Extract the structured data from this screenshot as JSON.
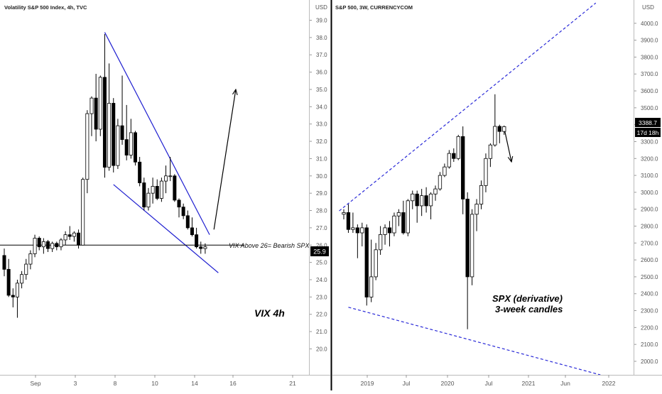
{
  "colors": {
    "up_candle": "#ffffff",
    "down_candle": "#000000",
    "candle_outline": "#000000",
    "trendline_left": "#1f1fd0",
    "trendline_right": "#2a2ad8",
    "axis_text": "#555555",
    "price_badge_bg": "#000000",
    "price_badge_text": "#ffffff"
  },
  "left_panel": {
    "header": "Volatility S&P 500 Index, 4h, TVC",
    "currency": "USD",
    "price_label": "25.9",
    "annotation_line": "VIX Above 26= Bearish SPX",
    "annotation_big": "VIX 4h"
  },
  "right_panel": {
    "header": "S&P 500, 3W, CURRENCYCOM",
    "currency": "USD",
    "price_label": "3388.7",
    "countdown": "17d 18h",
    "annotation_line1": "SPX (derivative)",
    "annotation_line2": "3-week candles"
  },
  "chart_data": [
    {
      "type": "candlestick",
      "title": "Volatility S&P 500 Index, 4h, TVC",
      "y_range": [
        18.5,
        39.8
      ],
      "y_ticks": [
        "20.0",
        "21.0",
        "22.0",
        "23.0",
        "24.0",
        "25.0",
        "26.0",
        "27.0",
        "28.0",
        "29.0",
        "30.0",
        "31.0",
        "32.0",
        "33.0",
        "34.0",
        "35.0",
        "36.0",
        "37.0",
        "38.0",
        "39.0"
      ],
      "x_ticks": [
        "Sep",
        "3",
        "8",
        "10",
        "14",
        "16",
        "21"
      ],
      "candles": [
        {
          "o": 25.4,
          "h": 25.8,
          "l": 24.2,
          "c": 24.6
        },
        {
          "o": 24.6,
          "h": 25.2,
          "l": 23.0,
          "c": 23.1
        },
        {
          "o": 23.1,
          "h": 23.5,
          "l": 22.4,
          "c": 23.0
        },
        {
          "o": 23.0,
          "h": 24.0,
          "l": 21.8,
          "c": 23.8
        },
        {
          "o": 23.8,
          "h": 24.5,
          "l": 23.5,
          "c": 24.3
        },
        {
          "o": 24.3,
          "h": 25.2,
          "l": 24.0,
          "c": 24.9
        },
        {
          "o": 24.9,
          "h": 25.7,
          "l": 24.6,
          "c": 25.5
        },
        {
          "o": 25.5,
          "h": 26.6,
          "l": 25.3,
          "c": 26.4
        },
        {
          "o": 26.4,
          "h": 26.5,
          "l": 25.7,
          "c": 25.9
        },
        {
          "o": 25.9,
          "h": 26.4,
          "l": 25.5,
          "c": 26.2
        },
        {
          "o": 26.2,
          "h": 26.3,
          "l": 25.6,
          "c": 25.8
        },
        {
          "o": 25.8,
          "h": 26.2,
          "l": 25.6,
          "c": 26.1
        },
        {
          "o": 26.1,
          "h": 26.2,
          "l": 25.7,
          "c": 25.9
        },
        {
          "o": 25.9,
          "h": 26.4,
          "l": 25.7,
          "c": 26.3
        },
        {
          "o": 26.3,
          "h": 26.8,
          "l": 26.0,
          "c": 26.6
        },
        {
          "o": 26.6,
          "h": 27.1,
          "l": 26.3,
          "c": 26.5
        },
        {
          "o": 26.5,
          "h": 26.8,
          "l": 26.2,
          "c": 26.7
        },
        {
          "o": 26.7,
          "h": 26.9,
          "l": 25.8,
          "c": 26.0
        },
        {
          "o": 26.0,
          "h": 29.9,
          "l": 26.0,
          "c": 29.8
        },
        {
          "o": 29.8,
          "h": 33.8,
          "l": 29.0,
          "c": 33.6
        },
        {
          "o": 33.6,
          "h": 34.6,
          "l": 32.3,
          "c": 34.5
        },
        {
          "o": 34.5,
          "h": 35.9,
          "l": 32.0,
          "c": 32.7
        },
        {
          "o": 32.7,
          "h": 35.8,
          "l": 32.3,
          "c": 35.7
        },
        {
          "o": 35.7,
          "h": 38.2,
          "l": 29.9,
          "c": 30.5
        },
        {
          "o": 30.5,
          "h": 36.5,
          "l": 30.3,
          "c": 34.2
        },
        {
          "o": 34.2,
          "h": 34.5,
          "l": 30.2,
          "c": 30.6
        },
        {
          "o": 30.6,
          "h": 33.3,
          "l": 30.4,
          "c": 32.9
        },
        {
          "o": 32.9,
          "h": 35.8,
          "l": 31.8,
          "c": 32.1
        },
        {
          "o": 32.1,
          "h": 34.1,
          "l": 30.9,
          "c": 31.2
        },
        {
          "o": 31.2,
          "h": 33.3,
          "l": 31.0,
          "c": 32.5
        },
        {
          "o": 32.5,
          "h": 32.6,
          "l": 30.6,
          "c": 30.8
        },
        {
          "o": 30.8,
          "h": 31.1,
          "l": 29.4,
          "c": 29.6
        },
        {
          "o": 29.6,
          "h": 29.9,
          "l": 28.0,
          "c": 28.2
        },
        {
          "o": 28.2,
          "h": 29.3,
          "l": 28.0,
          "c": 29.0
        },
        {
          "o": 29.0,
          "h": 29.9,
          "l": 28.4,
          "c": 29.4
        },
        {
          "o": 29.4,
          "h": 29.8,
          "l": 28.6,
          "c": 28.7
        },
        {
          "o": 28.7,
          "h": 29.9,
          "l": 28.5,
          "c": 29.7
        },
        {
          "o": 29.7,
          "h": 30.6,
          "l": 29.0,
          "c": 30.0
        },
        {
          "o": 30.0,
          "h": 31.1,
          "l": 29.7,
          "c": 30.0
        },
        {
          "o": 30.0,
          "h": 30.1,
          "l": 28.5,
          "c": 28.6
        },
        {
          "o": 28.6,
          "h": 28.7,
          "l": 27.6,
          "c": 28.2
        },
        {
          "o": 28.2,
          "h": 28.4,
          "l": 27.5,
          "c": 27.7
        },
        {
          "o": 27.7,
          "h": 28.0,
          "l": 26.9,
          "c": 27.0
        },
        {
          "o": 27.0,
          "h": 27.6,
          "l": 26.5,
          "c": 26.6
        },
        {
          "o": 26.6,
          "h": 27.0,
          "l": 25.8,
          "c": 25.9
        },
        {
          "o": 25.9,
          "h": 26.2,
          "l": 25.5,
          "c": 25.8
        },
        {
          "o": 25.8,
          "h": 26.1,
          "l": 25.5,
          "c": 25.9
        }
      ],
      "trendlines": [
        {
          "name": "wedge-upper",
          "points": [
            [
              23,
              38.3
            ],
            [
              47,
              26.6
            ]
          ]
        },
        {
          "name": "wedge-lower",
          "points": [
            [
              25,
              29.5
            ],
            [
              49,
              24.4
            ]
          ]
        },
        {
          "name": "level-26",
          "points": [
            [
              -2,
              26.0
            ],
            [
              55,
              26.0
            ]
          ]
        },
        {
          "name": "projection-arrow",
          "points": [
            [
              48,
              26.9
            ],
            [
              53,
              35.0
            ]
          ]
        }
      ]
    },
    {
      "type": "candlestick",
      "title": "S&P 500, 3W, CURRENCYCOM",
      "y_range": [
        1920,
        4100
      ],
      "y_ticks": [
        "2000.0",
        "2100.0",
        "2200.0",
        "2300.0",
        "2400.0",
        "2500.0",
        "2600.0",
        "2700.0",
        "2800.0",
        "2900.0",
        "3000.0",
        "3100.0",
        "3200.0",
        "3300.0",
        "3400.0",
        "3500.0",
        "3600.0",
        "3700.0",
        "3800.0",
        "3900.0",
        "4000.0"
      ],
      "x_ticks": [
        "2019",
        "Jul",
        "2020",
        "Jul",
        "2021",
        "Jun",
        "2022"
      ],
      "candles": [
        {
          "o": 2870,
          "h": 2900,
          "l": 2840,
          "c": 2880
        },
        {
          "o": 2880,
          "h": 2930,
          "l": 2760,
          "c": 2780
        },
        {
          "o": 2780,
          "h": 2880,
          "l": 2760,
          "c": 2790
        },
        {
          "o": 2790,
          "h": 2810,
          "l": 2610,
          "c": 2760
        },
        {
          "o": 2760,
          "h": 2820,
          "l": 2680,
          "c": 2790
        },
        {
          "o": 2790,
          "h": 2810,
          "l": 2330,
          "c": 2380
        },
        {
          "o": 2380,
          "h": 2720,
          "l": 2350,
          "c": 2500
        },
        {
          "o": 2500,
          "h": 2700,
          "l": 2480,
          "c": 2660
        },
        {
          "o": 2660,
          "h": 2800,
          "l": 2630,
          "c": 2750
        },
        {
          "o": 2750,
          "h": 2810,
          "l": 2690,
          "c": 2790
        },
        {
          "o": 2790,
          "h": 2830,
          "l": 2680,
          "c": 2760
        },
        {
          "o": 2760,
          "h": 2880,
          "l": 2740,
          "c": 2860
        },
        {
          "o": 2860,
          "h": 2900,
          "l": 2800,
          "c": 2880
        },
        {
          "o": 2880,
          "h": 2950,
          "l": 2750,
          "c": 2760
        },
        {
          "o": 2760,
          "h": 2960,
          "l": 2740,
          "c": 2950
        },
        {
          "o": 2950,
          "h": 3010,
          "l": 2900,
          "c": 2990
        },
        {
          "o": 2990,
          "h": 3010,
          "l": 2820,
          "c": 2920
        },
        {
          "o": 2920,
          "h": 3020,
          "l": 2860,
          "c": 2980
        },
        {
          "o": 2980,
          "h": 3030,
          "l": 2880,
          "c": 2920
        },
        {
          "o": 2920,
          "h": 3000,
          "l": 2840,
          "c": 2990
        },
        {
          "o": 2990,
          "h": 3040,
          "l": 2950,
          "c": 3020
        },
        {
          "o": 3020,
          "h": 3120,
          "l": 3010,
          "c": 3100
        },
        {
          "o": 3100,
          "h": 3170,
          "l": 3090,
          "c": 3150
        },
        {
          "o": 3150,
          "h": 3250,
          "l": 3140,
          "c": 3230
        },
        {
          "o": 3230,
          "h": 3260,
          "l": 3180,
          "c": 3200
        },
        {
          "o": 3200,
          "h": 3340,
          "l": 3190,
          "c": 3330
        },
        {
          "o": 3330,
          "h": 3390,
          "l": 2870,
          "c": 2960
        },
        {
          "o": 2960,
          "h": 3000,
          "l": 2190,
          "c": 2500
        },
        {
          "o": 2500,
          "h": 2900,
          "l": 2450,
          "c": 2870
        },
        {
          "o": 2870,
          "h": 2960,
          "l": 2770,
          "c": 2930
        },
        {
          "o": 2930,
          "h": 3070,
          "l": 2900,
          "c": 3040
        },
        {
          "o": 3040,
          "h": 3230,
          "l": 3000,
          "c": 3200
        },
        {
          "o": 3200,
          "h": 3290,
          "l": 3150,
          "c": 3280
        },
        {
          "o": 3280,
          "h": 3580,
          "l": 3270,
          "c": 3390
        },
        {
          "o": 3390,
          "h": 3400,
          "l": 3290,
          "c": 3360
        },
        {
          "o": 3360,
          "h": 3395,
          "l": 3340,
          "c": 3388.7
        }
      ],
      "trendlines": [
        {
          "name": "channel-upper",
          "points": [
            [
              -1,
              2890
            ],
            [
              55,
              4120
            ]
          ]
        },
        {
          "name": "channel-lower",
          "points": [
            [
              1,
              2320
            ],
            [
              56,
              1920
            ]
          ]
        },
        {
          "name": "projection-arrow",
          "points": [
            [
              35,
              3380
            ],
            [
              36.6,
              3180
            ]
          ]
        }
      ]
    }
  ]
}
